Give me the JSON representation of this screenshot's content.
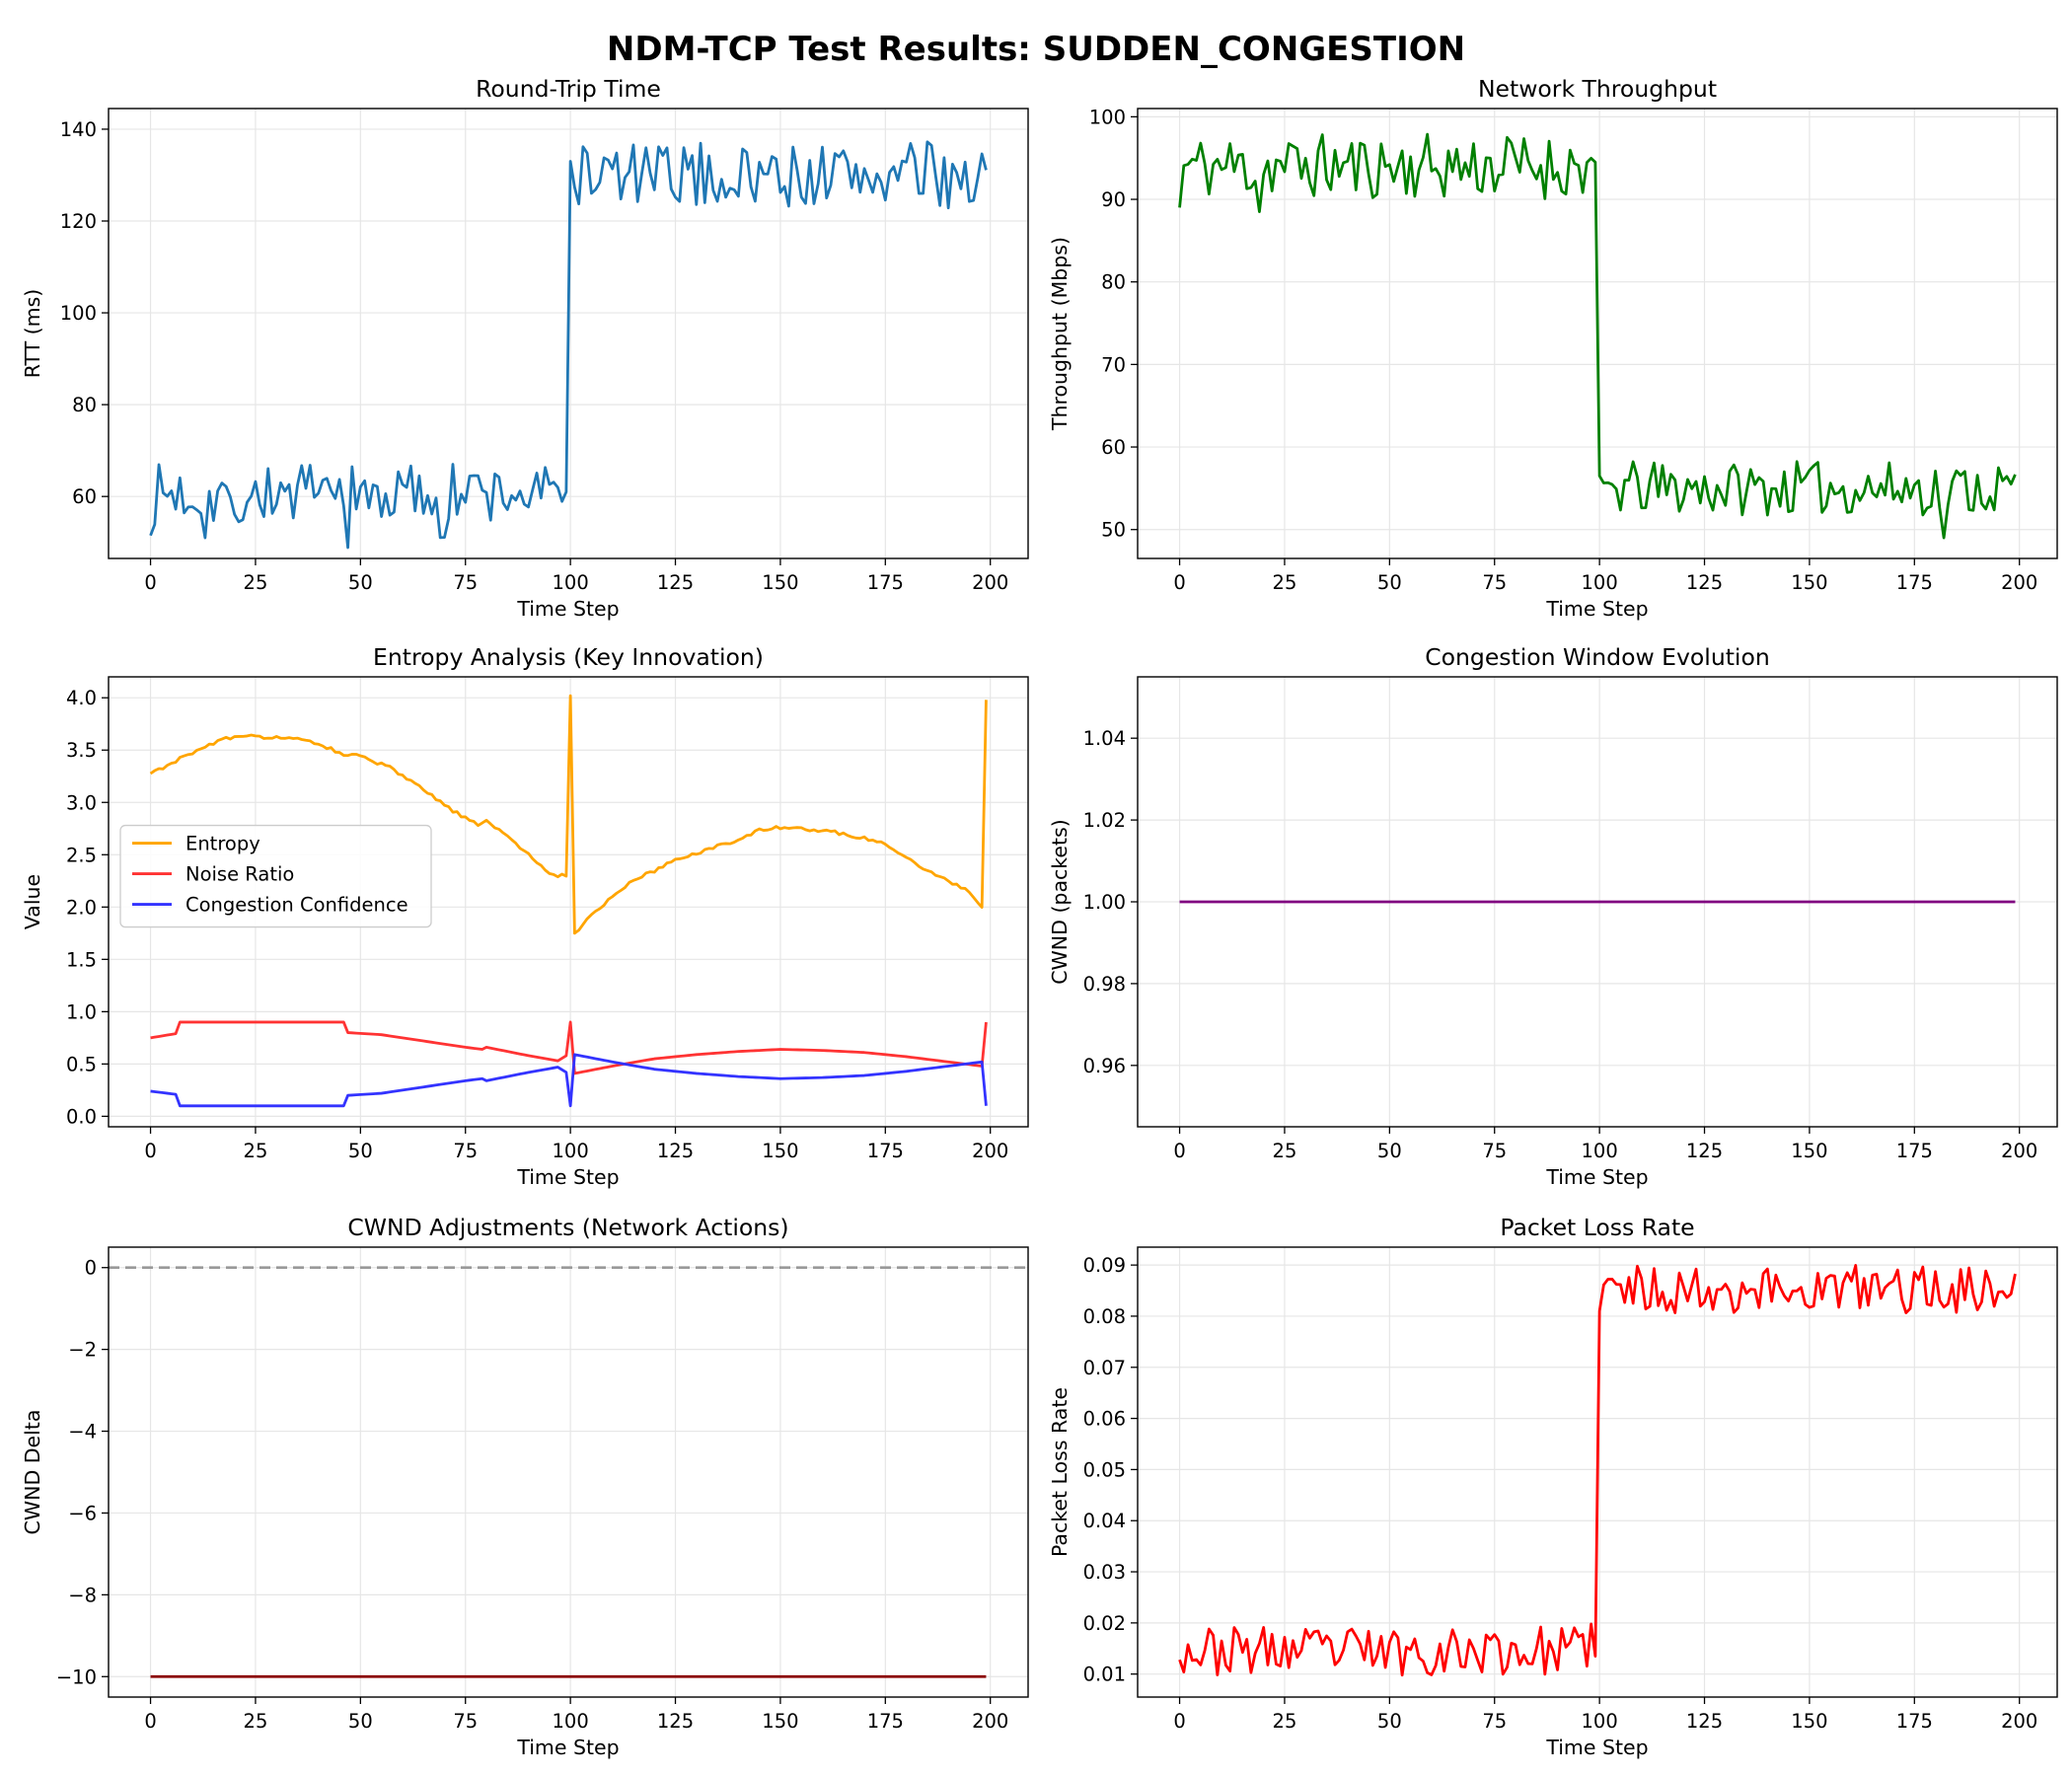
{
  "figure": {
    "title": "NDM-TCP Test Results: SUDDEN_CONGESTION"
  },
  "chart_data": [
    {
      "id": "rtt",
      "type": "line",
      "title": "Round-Trip Time",
      "xlabel": "Time Step",
      "ylabel": "RTT (ms)",
      "xlim": [
        -10,
        209
      ],
      "ylim": [
        46.5,
        144.5
      ],
      "xticks": [
        0,
        25,
        50,
        75,
        100,
        125,
        150,
        175,
        200
      ],
      "yticks": [
        60,
        80,
        100,
        120,
        140
      ],
      "series": [
        {
          "name": "RTT",
          "color": "#1f77b4",
          "gen": "rtt"
        }
      ]
    },
    {
      "id": "throughput",
      "type": "line",
      "title": "Network Throughput",
      "xlabel": "Time Step",
      "ylabel": "Throughput (Mbps)",
      "xlim": [
        -10,
        209
      ],
      "ylim": [
        46.5,
        101
      ],
      "xticks": [
        0,
        25,
        50,
        75,
        100,
        125,
        150,
        175,
        200
      ],
      "yticks": [
        50,
        60,
        70,
        80,
        90,
        100
      ],
      "series": [
        {
          "name": "Throughput",
          "color": "#008000",
          "gen": "throughput"
        }
      ]
    },
    {
      "id": "entropy",
      "type": "line",
      "title": "Entropy Analysis (Key Innovation)",
      "xlabel": "Time Step",
      "ylabel": "Value",
      "xlim": [
        -10,
        209
      ],
      "ylim": [
        -0.1,
        4.2
      ],
      "xticks": [
        0,
        25,
        50,
        75,
        100,
        125,
        150,
        175,
        200
      ],
      "yticks": [
        0.0,
        0.5,
        1.0,
        1.5,
        2.0,
        2.5,
        3.0,
        3.5,
        4.0
      ],
      "ytick_decimals": 1,
      "legend": {
        "position": "center-left",
        "entries": [
          "Entropy",
          "Noise Ratio",
          "Congestion Confidence"
        ]
      },
      "series": [
        {
          "name": "Entropy",
          "color": "#ffa500",
          "gen": "entropy",
          "keypoints": [
            [
              0,
              3.27
            ],
            [
              5,
              3.38
            ],
            [
              10,
              3.47
            ],
            [
              15,
              3.57
            ],
            [
              18,
              3.61
            ],
            [
              25,
              3.63
            ],
            [
              32,
              3.62
            ],
            [
              40,
              3.56
            ],
            [
              47,
              3.45
            ],
            [
              50,
              3.44
            ],
            [
              57,
              3.33
            ],
            [
              65,
              3.12
            ],
            [
              72,
              2.92
            ],
            [
              78,
              2.78
            ],
            [
              80,
              2.83
            ],
            [
              85,
              2.68
            ],
            [
              90,
              2.5
            ],
            [
              94,
              2.35
            ],
            [
              97,
              2.3
            ],
            [
              99,
              2.3
            ],
            [
              100,
              4.02
            ],
            [
              101,
              1.75
            ],
            [
              105,
              1.93
            ],
            [
              110,
              2.1
            ],
            [
              115,
              2.25
            ],
            [
              120,
              2.35
            ],
            [
              125,
              2.45
            ],
            [
              130,
              2.52
            ],
            [
              135,
              2.58
            ],
            [
              140,
              2.65
            ],
            [
              145,
              2.73
            ],
            [
              150,
              2.76
            ],
            [
              155,
              2.75
            ],
            [
              160,
              2.73
            ],
            [
              165,
              2.7
            ],
            [
              170,
              2.66
            ],
            [
              175,
              2.6
            ],
            [
              180,
              2.48
            ],
            [
              185,
              2.35
            ],
            [
              190,
              2.25
            ],
            [
              195,
              2.15
            ],
            [
              198,
              2.0
            ],
            [
              199,
              3.98
            ]
          ]
        },
        {
          "name": "Noise Ratio",
          "color": "#ff3333",
          "gen": "keypoints",
          "keypoints": [
            [
              0,
              0.75
            ],
            [
              6,
              0.79
            ],
            [
              7,
              0.9
            ],
            [
              46,
              0.9
            ],
            [
              47,
              0.8
            ],
            [
              55,
              0.78
            ],
            [
              65,
              0.72
            ],
            [
              75,
              0.66
            ],
            [
              79,
              0.64
            ],
            [
              80,
              0.66
            ],
            [
              90,
              0.58
            ],
            [
              97,
              0.53
            ],
            [
              99,
              0.58
            ],
            [
              100,
              0.9
            ],
            [
              101,
              0.41
            ],
            [
              110,
              0.48
            ],
            [
              120,
              0.55
            ],
            [
              130,
              0.59
            ],
            [
              140,
              0.62
            ],
            [
              150,
              0.64
            ],
            [
              160,
              0.63
            ],
            [
              170,
              0.61
            ],
            [
              180,
              0.57
            ],
            [
              190,
              0.52
            ],
            [
              198,
              0.48
            ],
            [
              199,
              0.9
            ]
          ]
        },
        {
          "name": "Congestion Confidence",
          "color": "#3333ff",
          "gen": "keypoints",
          "keypoints": [
            [
              0,
              0.24
            ],
            [
              6,
              0.21
            ],
            [
              7,
              0.1
            ],
            [
              46,
              0.1
            ],
            [
              47,
              0.2
            ],
            [
              55,
              0.22
            ],
            [
              65,
              0.28
            ],
            [
              75,
              0.34
            ],
            [
              79,
              0.36
            ],
            [
              80,
              0.34
            ],
            [
              90,
              0.42
            ],
            [
              97,
              0.47
            ],
            [
              99,
              0.42
            ],
            [
              100,
              0.1
            ],
            [
              101,
              0.59
            ],
            [
              110,
              0.52
            ],
            [
              120,
              0.45
            ],
            [
              130,
              0.41
            ],
            [
              140,
              0.38
            ],
            [
              150,
              0.36
            ],
            [
              160,
              0.37
            ],
            [
              170,
              0.39
            ],
            [
              180,
              0.43
            ],
            [
              190,
              0.48
            ],
            [
              198,
              0.52
            ],
            [
              199,
              0.1
            ]
          ]
        }
      ]
    },
    {
      "id": "cwnd",
      "type": "line",
      "title": "Congestion Window Evolution",
      "xlabel": "Time Step",
      "ylabel": "CWND (packets)",
      "xlim": [
        -10,
        209
      ],
      "ylim": [
        0.945,
        1.055
      ],
      "xticks": [
        0,
        25,
        50,
        75,
        100,
        125,
        150,
        175,
        200
      ],
      "yticks": [
        0.96,
        0.98,
        1.0,
        1.02,
        1.04
      ],
      "ytick_decimals": 2,
      "series": [
        {
          "name": "CWND",
          "color": "#800080",
          "gen": "constant",
          "value": 1.0
        }
      ]
    },
    {
      "id": "adjust",
      "type": "line",
      "title": "CWND Adjustments (Network Actions)",
      "xlabel": "Time Step",
      "ylabel": "CWND Delta",
      "xlim": [
        -10,
        209
      ],
      "ylim": [
        -10.5,
        0.5
      ],
      "xticks": [
        0,
        25,
        50,
        75,
        100,
        125,
        150,
        175,
        200
      ],
      "yticks": [
        0,
        -2,
        -4,
        -6,
        -8,
        -10
      ],
      "ytick_minus": true,
      "hline": {
        "value": 0,
        "color": "#999999",
        "dashed": true
      },
      "series": [
        {
          "name": "CWND Delta",
          "color": "#8b0000",
          "gen": "constant",
          "value": -10
        }
      ]
    },
    {
      "id": "loss",
      "type": "line",
      "title": "Packet Loss Rate",
      "xlabel": "Time Step",
      "ylabel": "Packet Loss Rate",
      "xlim": [
        -10,
        209
      ],
      "ylim": [
        0.0055,
        0.0935
      ],
      "xticks": [
        0,
        25,
        50,
        75,
        100,
        125,
        150,
        175,
        200
      ],
      "yticks": [
        0.01,
        0.02,
        0.03,
        0.04,
        0.05,
        0.06,
        0.07,
        0.08,
        0.09
      ],
      "ytick_decimals": 2,
      "series": [
        {
          "name": "Packet Loss Rate",
          "color": "#ff0000",
          "gen": "loss"
        }
      ]
    }
  ]
}
